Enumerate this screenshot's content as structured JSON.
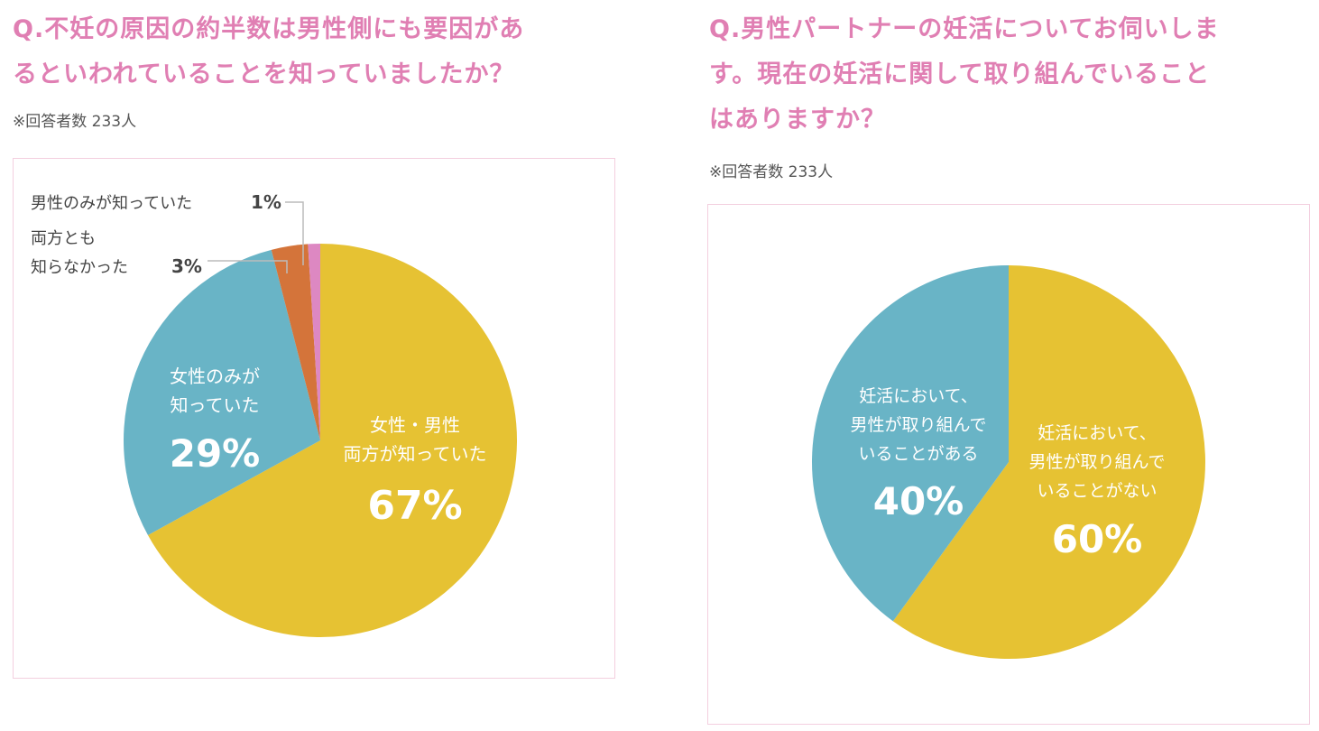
{
  "charts": [
    {
      "title_lines": [
        "Q.不妊の原因の約半数は男性側にも要因があ",
        "るといわれていることを知っていましたか？"
      ],
      "respondents": "※回答者数 233人",
      "chart_data": {
        "type": "pie",
        "slices": [
          {
            "label_lines": [
              "女性・男性",
              "両方が知っていた"
            ],
            "pct_text": "67%",
            "value": 67,
            "color": "#e6c233"
          },
          {
            "label_lines": [
              "女性のみが",
              "知っていた"
            ],
            "pct_text": "29%",
            "value": 29,
            "color": "#69b4c6"
          },
          {
            "label_lines": [
              "両方とも",
              "知らなかった"
            ],
            "pct_text": "3%",
            "value": 3,
            "color": "#d4743a"
          },
          {
            "label_lines": [
              "男性のみが知っていた"
            ],
            "pct_text": "1%",
            "value": 1,
            "color": "#dd88c2"
          }
        ]
      }
    },
    {
      "title_lines": [
        "Q.男性パートナーの妊活についてお伺いしま",
        "す。現在の妊活に関して取り組んでいること",
        "はありますか？"
      ],
      "respondents": "※回答者数 233人",
      "chart_data": {
        "type": "pie",
        "slices": [
          {
            "label_lines": [
              "妊活において、",
              "男性が取り組んで",
              "いることがない"
            ],
            "pct_text": "60%",
            "value": 60,
            "color": "#e6c233"
          },
          {
            "label_lines": [
              "妊活において、",
              "男性が取り組んで",
              "いることがある"
            ],
            "pct_text": "40%",
            "value": 40,
            "color": "#69b4c6"
          }
        ]
      }
    }
  ]
}
